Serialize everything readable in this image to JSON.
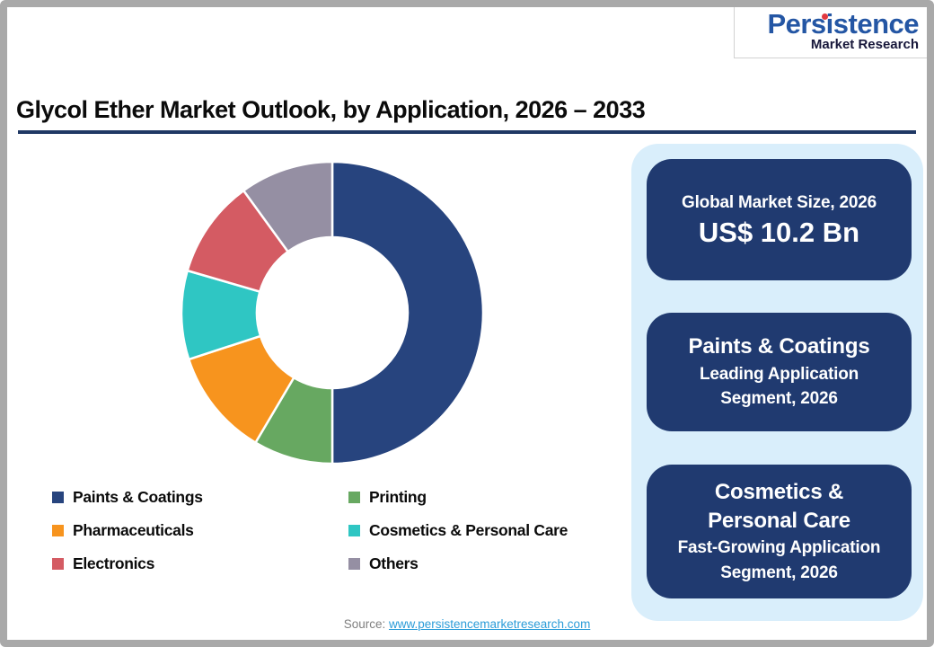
{
  "page": {
    "title": "Glycol Ether Market Outlook, by Application, 2026 – 2033"
  },
  "logo": {
    "line1": "Persistence",
    "line2": "Market Research",
    "line1_color": "#2456a4",
    "line2_color": "#17173a",
    "dot_color": "#e2383f"
  },
  "chart_data": {
    "type": "pie",
    "subtype": "donut",
    "title": "Glycol Ether Market Outlook, by Application, 2026 – 2033",
    "categories": [
      "Paints & Coatings",
      "Printing",
      "Pharmaceuticals",
      "Cosmetics & Personal Care",
      "Electronics",
      "Others"
    ],
    "values": [
      50,
      8.5,
      11.5,
      9.5,
      10.5,
      10
    ],
    "colors": [
      "#27447e",
      "#67a861",
      "#f7941e",
      "#2fc6c3",
      "#d45b63",
      "#958fa3"
    ],
    "start_angle_deg": 0,
    "clockwise": true,
    "inner_radius_ratio": 0.5,
    "data_labels": false,
    "legend_position": "bottom-left"
  },
  "legend": {
    "items": [
      {
        "label": "Paints & Coatings",
        "color": "#27447e"
      },
      {
        "label": "Printing",
        "color": "#67a861"
      },
      {
        "label": "Pharmaceuticals",
        "color": "#f7941e"
      },
      {
        "label": "Cosmetics & Personal Care",
        "color": "#2fc6c3"
      },
      {
        "label": "Electronics",
        "color": "#d45b63"
      },
      {
        "label": "Others",
        "color": "#958fa3"
      }
    ]
  },
  "panel": {
    "background": "#d9eefb",
    "box_background": "#203a70",
    "boxes": [
      {
        "heading": "Global Market Size, 2026",
        "value": "US$ 10.2 Bn"
      },
      {
        "heading": "Paints & Coatings",
        "sub_lines": [
          "Leading Application",
          "Segment, 2026"
        ]
      },
      {
        "heading_lines": [
          "Cosmetics &",
          "Personal Care"
        ],
        "sub_lines": [
          "Fast-Growing Application",
          "Segment, 2026"
        ]
      }
    ]
  },
  "footer": {
    "source_label": "Source:",
    "source_link": "www.persistencemarketresearch.com"
  }
}
